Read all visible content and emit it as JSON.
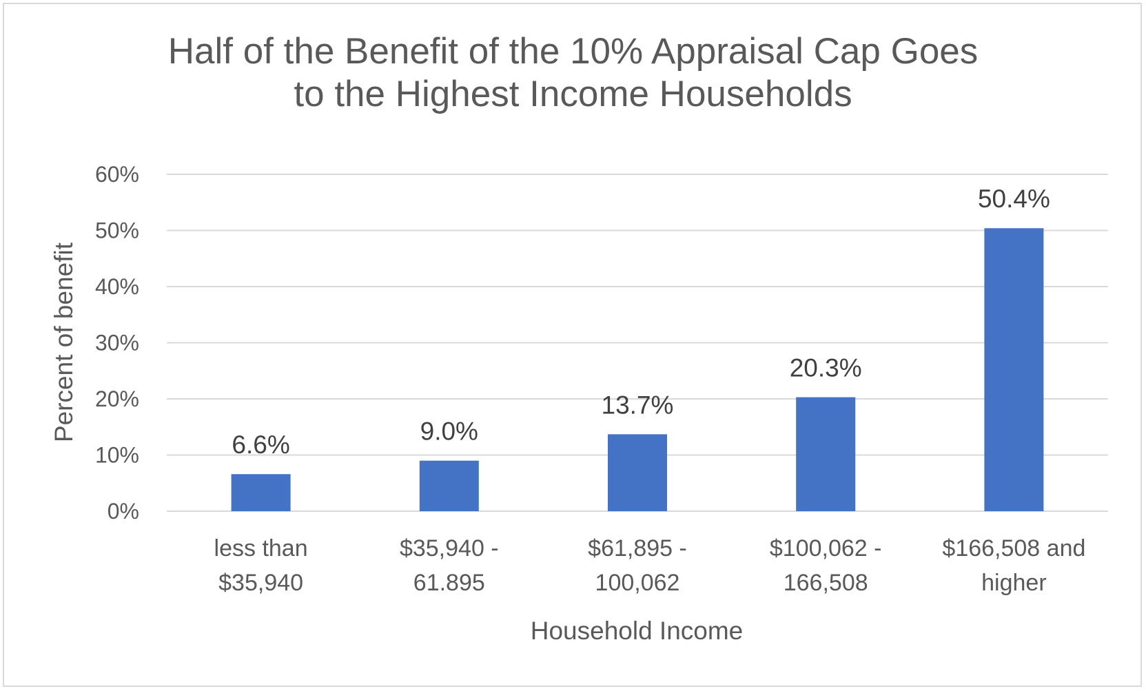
{
  "chart_data": {
    "type": "bar",
    "title_lines": [
      "Half of the Benefit of the 10% Appraisal Cap Goes",
      "to the Highest Income Households"
    ],
    "xlabel": "Household Income",
    "ylabel": "Percent of benefit",
    "categories": [
      [
        "less than",
        "$35,940"
      ],
      [
        "$35,940 -",
        "61.895"
      ],
      [
        "$61,895 -",
        "100,062"
      ],
      [
        "$100,062 -",
        "166,508"
      ],
      [
        "$166,508 and",
        "higher"
      ]
    ],
    "values": [
      6.6,
      9.0,
      13.7,
      20.3,
      50.4
    ],
    "data_labels": [
      "6.6%",
      "9.0%",
      "13.7%",
      "20.3%",
      "50.4%"
    ],
    "ylim": [
      0,
      60
    ],
    "yticks": [
      0,
      10,
      20,
      30,
      40,
      50,
      60
    ],
    "ytick_labels": [
      "0%",
      "10%",
      "20%",
      "30%",
      "40%",
      "50%",
      "60%"
    ],
    "grid": true,
    "legend": "none",
    "colors": {
      "bar": "#4472c4",
      "grid": "#d9d9d9",
      "text": "#595959",
      "data_label": "#404040"
    }
  }
}
